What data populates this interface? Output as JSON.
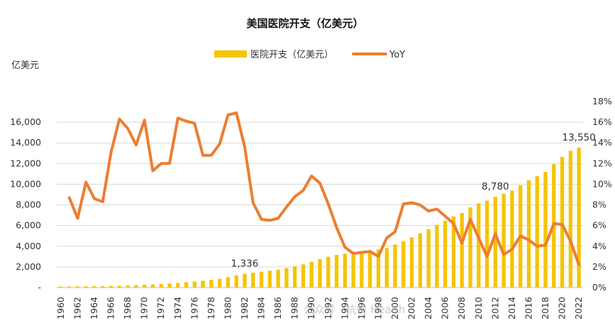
{
  "chart_data": {
    "type": "bar+line",
    "title": "美国医院开支（亿美元）",
    "ylabel_left": "亿美元",
    "ylim_left": [
      0,
      18000
    ],
    "yticks_left": [
      "-",
      "2,000",
      "4,000",
      "6,000",
      "8,000",
      "10,000",
      "12,000",
      "14,000",
      "16,000"
    ],
    "ylim_right": [
      0,
      18
    ],
    "yticks_right": [
      "0%",
      "2%",
      "4%",
      "6%",
      "8%",
      "10%",
      "12%",
      "14%",
      "16%",
      "18%"
    ],
    "x_tick_labels": [
      "1960",
      "1962",
      "1964",
      "1966",
      "1968",
      "1970",
      "1972",
      "1974",
      "1976",
      "1978",
      "1980",
      "1982",
      "1984",
      "1986",
      "1988",
      "1990",
      "1992",
      "1994",
      "1996",
      "1998",
      "2000",
      "2002",
      "2004",
      "2006",
      "2008",
      "2010",
      "2012",
      "2014",
      "2016",
      "2018",
      "2020",
      "2022"
    ],
    "x_range": [
      1960,
      2022
    ],
    "legend_position": "top-center",
    "grid": "horizontal",
    "series": [
      {
        "name": "医院开支（亿美元）",
        "kind": "bar",
        "color": "#F5C400",
        "x": [
          1960,
          1961,
          1962,
          1963,
          1964,
          1965,
          1966,
          1967,
          1968,
          1969,
          1970,
          1971,
          1972,
          1973,
          1974,
          1975,
          1976,
          1977,
          1978,
          1979,
          1980,
          1981,
          1982,
          1983,
          1984,
          1985,
          1986,
          1987,
          1988,
          1989,
          1990,
          1991,
          1992,
          1993,
          1994,
          1995,
          1996,
          1997,
          1998,
          1999,
          2000,
          2001,
          2002,
          2003,
          2004,
          2005,
          2006,
          2007,
          2008,
          2009,
          2010,
          2011,
          2012,
          2013,
          2014,
          2015,
          2016,
          2017,
          2018,
          2019,
          2020,
          2021,
          2022
        ],
        "values": [
          90,
          98,
          104,
          115,
          126,
          138,
          156,
          180,
          207,
          237,
          275,
          306,
          343,
          386,
          446,
          512,
          587,
          660,
          741,
          842,
          1007,
          1179,
          1336,
          1436,
          1523,
          1627,
          1738,
          1876,
          2050,
          2247,
          2500,
          2750,
          2980,
          3160,
          3280,
          3390,
          3490,
          3590,
          3690,
          3820,
          4170,
          4500,
          4860,
          5250,
          5640,
          6070,
          6460,
          6880,
          7210,
          7760,
          8150,
          8410,
          8780,
          9060,
          9390,
          9900,
          10370,
          10780,
          11190,
          11930,
          12650,
          13240,
          13550
        ]
      },
      {
        "name": "YoY",
        "kind": "line",
        "color": "#ED7D31",
        "unit": "%",
        "x": [
          1961,
          1962,
          1963,
          1964,
          1965,
          1966,
          1967,
          1968,
          1969,
          1970,
          1971,
          1972,
          1973,
          1974,
          1975,
          1976,
          1977,
          1978,
          1979,
          1980,
          1981,
          1982,
          1983,
          1984,
          1985,
          1986,
          1987,
          1988,
          1989,
          1990,
          1991,
          1992,
          1993,
          1994,
          1995,
          1996,
          1997,
          1998,
          1999,
          2000,
          2001,
          2002,
          2003,
          2004,
          2005,
          2006,
          2007,
          2008,
          2009,
          2010,
          2011,
          2012,
          2013,
          2014,
          2015,
          2016,
          2017,
          2018,
          2019,
          2020,
          2021,
          2022
        ],
        "values": [
          8.7,
          6.7,
          10.2,
          8.6,
          8.3,
          13.1,
          16.3,
          15.4,
          13.8,
          16.2,
          11.3,
          12.0,
          12.0,
          16.4,
          16.1,
          15.9,
          12.8,
          12.8,
          13.9,
          16.7,
          16.9,
          13.6,
          8.2,
          6.6,
          6.5,
          6.7,
          7.8,
          8.8,
          9.4,
          10.8,
          10.1,
          8.1,
          5.8,
          3.9,
          3.3,
          3.4,
          3.5,
          3.0,
          4.8,
          5.4,
          8.1,
          8.2,
          8.0,
          7.4,
          7.6,
          6.9,
          6.2,
          4.3,
          6.6,
          4.8,
          3.0,
          5.2,
          3.2,
          3.7,
          5.0,
          4.6,
          4.0,
          4.1,
          6.2,
          6.1,
          4.5,
          2.2
        ]
      }
    ],
    "annotations": [
      {
        "x": 1982,
        "value": 1336,
        "text": "1,336"
      },
      {
        "x": 2012,
        "value": 8780,
        "text": "8,780"
      },
      {
        "x": 2022,
        "value": 13550,
        "text": "13,550"
      }
    ]
  },
  "watermark": "公众号 · 杭州 Health"
}
